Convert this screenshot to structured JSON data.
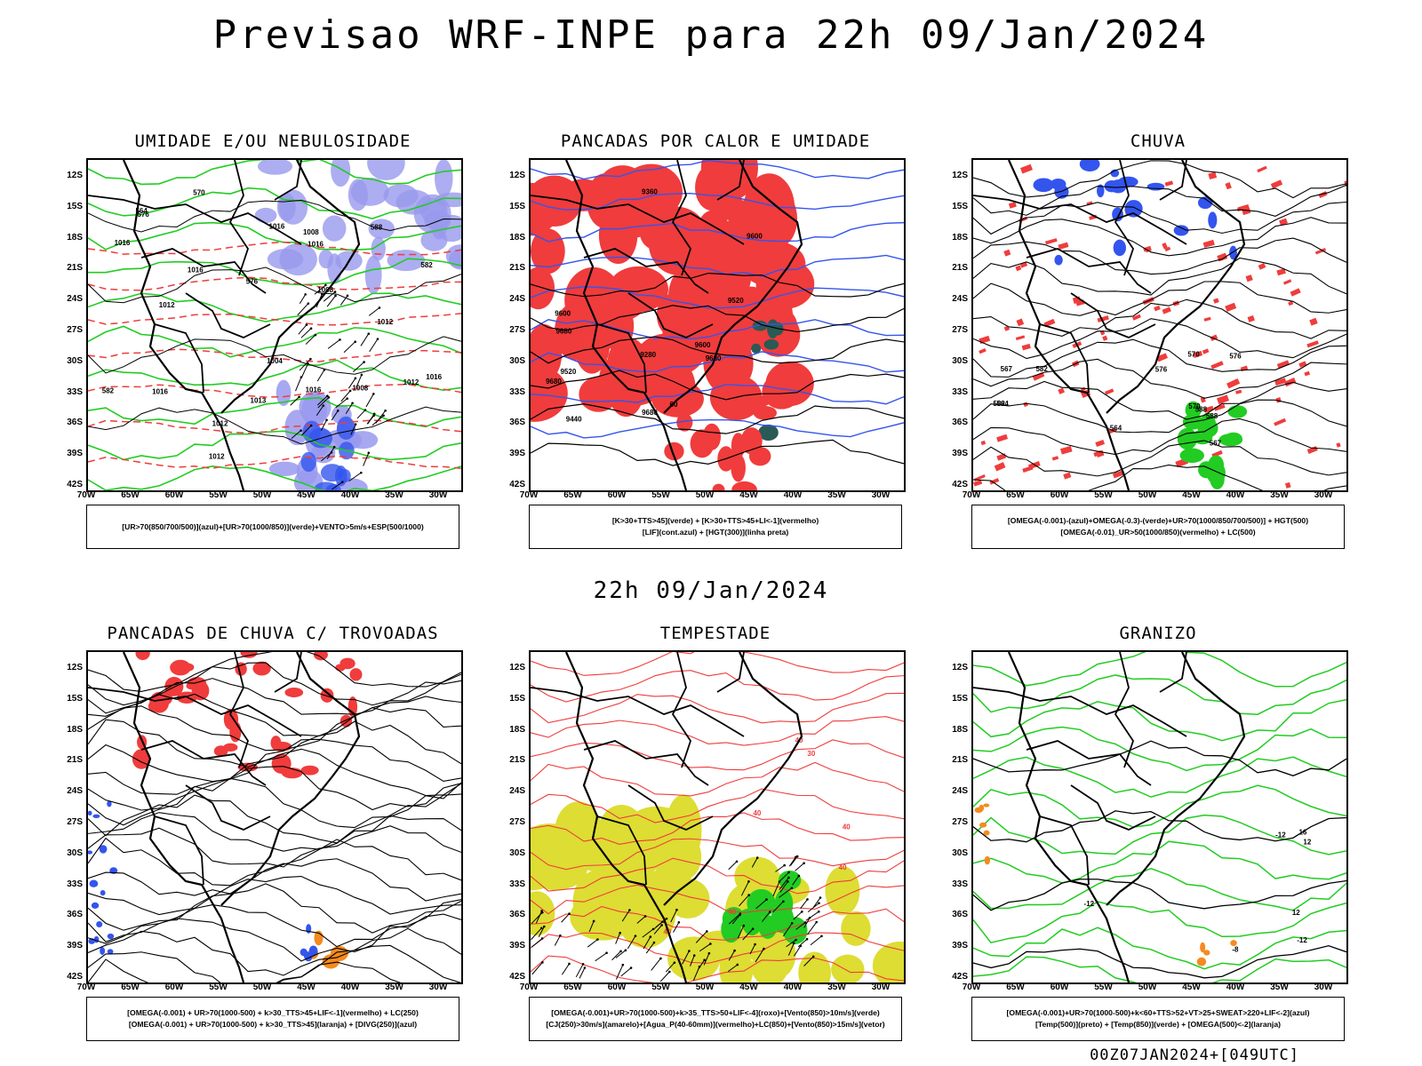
{
  "page": {
    "title": "Previsao WRF-INPE  para 22h 09/Jan/2024",
    "mid_title": "22h 09/Jan/2024",
    "footer": "00Z07JAN2024+[049UTC]"
  },
  "axes": {
    "lat_labels": [
      "12S",
      "15S",
      "18S",
      "21S",
      "24S",
      "27S",
      "30S",
      "33S",
      "36S",
      "39S",
      "42S"
    ],
    "lon_labels": [
      "70W",
      "65W",
      "60W",
      "55W",
      "50W",
      "45W",
      "40W",
      "35W",
      "30W"
    ]
  },
  "colors": {
    "red": "#f03c3c",
    "green": "#22cc22",
    "blue": "#3355ee",
    "lavender": "#9999ee",
    "yellow": "#dddd33",
    "orange": "#f58a1e",
    "teal": "#2a5a55",
    "black": "#000000"
  },
  "panels": [
    {
      "id": "umidade",
      "title": "UMIDADE E/OU NEBULOSIDADE",
      "legend": [
        "[UR>70(850/700/500)](azul)+[UR>70(1000/850)](verde)+VENTO>5m/s+ESP(500/1000)"
      ],
      "contour_labels": [
        "1008",
        "1012",
        "1012",
        "1016",
        "1016",
        "1016",
        "1012",
        "1004",
        "1008",
        "1012",
        "1016",
        "1012",
        "1013",
        "1016",
        "1016",
        "1008",
        "1016",
        "576",
        "582",
        "576",
        "570",
        "564",
        "588",
        "582"
      ]
    },
    {
      "id": "pancadas_calor",
      "title": "PANCADAS POR CALOR E UMIDADE",
      "legend": [
        "[K>30+TTS>45](verde) + [K>30+TTS>45+LI<-1](vermelho)",
        "[LIF](cont.azul) + [HGT(300)](linha preta)"
      ],
      "contour_labels": [
        "9680",
        "9680",
        "9680",
        "9680",
        "9600",
        "9600",
        "9600",
        "9520",
        "9520",
        "9440",
        "9360",
        "9280",
        "60"
      ]
    },
    {
      "id": "chuva",
      "title": "CHUVA",
      "legend": [
        "[OMEGA(-0.001)-(azul)+OMEGA(-0.3)-(verde)+UR>70(1000/850/700/500)] + HGT(500)",
        "[OMEGA(-0.01)_UR>50(1000/850)(vermelho) + LC(500)"
      ],
      "contour_labels": [
        "588",
        "582",
        "576",
        "570",
        "567",
        "564",
        "582",
        "576",
        "570",
        "567",
        "564",
        "588"
      ]
    },
    {
      "id": "pancadas_trovoadas",
      "title": "PANCADAS DE CHUVA C/ TROVOADAS",
      "legend": [
        "[OMEGA(-0.001) + UR>70(1000-500) + k>30_TTS>45+LIF<-1](vermelho) + LC(250)",
        "[OMEGA(-0.001) + UR>70(1000-500) + k>30_TTS>45](laranja) + [DIVG(250)](azul)"
      ],
      "contour_labels": []
    },
    {
      "id": "tempestade",
      "title": "TEMPESTADE",
      "legend": [
        "[OMEGA(-0.001)+UR>70(1000-500)+k>35_TTS>50+LIF<-4](roxo)+[Vento(850)>10m/s](verde)",
        "[CJ(250)>30m/s](amarelo)+[Agua_P(40-60mm)](vermelho)+LC(850)+[Vento(850)>15m/s](vetor)"
      ],
      "contour_labels": [
        "40",
        "40",
        "40",
        "40",
        "40",
        "40",
        "30"
      ]
    },
    {
      "id": "granizo",
      "title": "GRANIZO",
      "legend": [
        "[OMEGA(-0.001)+UR>70(1000-500)+k<60+TTS>52+VT>25+SWEAT>220+LIF<-2](azul)",
        "[Temp(500)](preto) + [Temp(850)](verde) + [OMEGA(500)<-2](laranja)"
      ],
      "contour_labels": [
        "-12",
        "-12",
        "-12",
        "-8",
        "12",
        "12",
        "16"
      ]
    }
  ]
}
